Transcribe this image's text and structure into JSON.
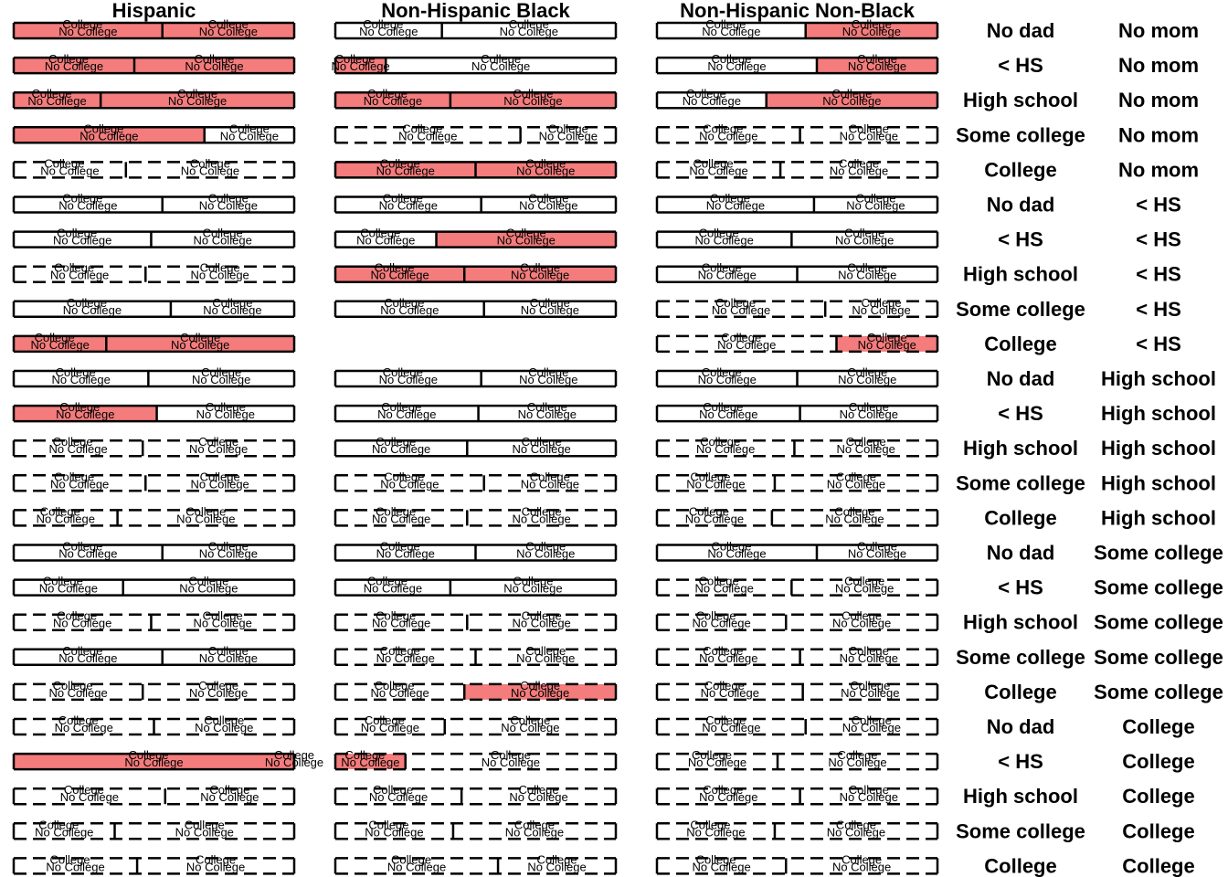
{
  "chart_data": {
    "type": "bar",
    "title": "",
    "columns": [
      "Hispanic",
      "Non-Hispanic Black",
      "Non-Hispanic Non-Black"
    ],
    "segment_labels": [
      "No College",
      "College"
    ],
    "row_labels": [
      [
        "No dad",
        "No mom"
      ],
      [
        "< HS",
        "No mom"
      ],
      [
        "High school",
        "No mom"
      ],
      [
        "Some college",
        "No mom"
      ],
      [
        "College",
        "No mom"
      ],
      [
        "No dad",
        "< HS"
      ],
      [
        "< HS",
        "< HS"
      ],
      [
        "High school",
        "< HS"
      ],
      [
        "Some college",
        "< HS"
      ],
      [
        "College",
        "< HS"
      ],
      [
        "No dad",
        "High school"
      ],
      [
        "< HS",
        "High school"
      ],
      [
        "High school",
        "High school"
      ],
      [
        "Some college",
        "High school"
      ],
      [
        "College",
        "High school"
      ],
      [
        "No dad",
        "Some college"
      ],
      [
        "< HS",
        "Some college"
      ],
      [
        "High school",
        "Some college"
      ],
      [
        "Some college",
        "Some college"
      ],
      [
        "College",
        "Some college"
      ],
      [
        "No dad",
        "College"
      ],
      [
        "< HS",
        "College"
      ],
      [
        "High school",
        "College"
      ],
      [
        "Some college",
        "College"
      ],
      [
        "College",
        "College"
      ]
    ],
    "no_college_share": [
      [
        0.53,
        0.38,
        0.53
      ],
      [
        0.43,
        0.18,
        0.57
      ],
      [
        0.31,
        0.41,
        0.39
      ],
      [
        0.68,
        0.66,
        0.51
      ],
      [
        0.4,
        0.5,
        0.44
      ],
      [
        0.53,
        0.52,
        0.56
      ],
      [
        0.49,
        0.36,
        0.48
      ],
      [
        0.47,
        0.46,
        0.5
      ],
      [
        0.56,
        0.53,
        0.6
      ],
      [
        0.33,
        null,
        0.64
      ],
      [
        0.48,
        0.52,
        0.5
      ],
      [
        0.51,
        0.51,
        0.51
      ],
      [
        0.46,
        0.47,
        0.49
      ],
      [
        0.47,
        0.53,
        0.42
      ],
      [
        0.37,
        0.47,
        0.41
      ],
      [
        0.53,
        0.5,
        0.57
      ],
      [
        0.39,
        0.41,
        0.48
      ],
      [
        0.49,
        0.47,
        0.46
      ],
      [
        0.53,
        0.5,
        0.51
      ],
      [
        0.46,
        0.46,
        0.52
      ],
      [
        0.5,
        0.39,
        0.53
      ],
      [
        1.0,
        0.25,
        0.43
      ],
      [
        0.54,
        0.45,
        0.51
      ],
      [
        0.36,
        0.42,
        0.42
      ],
      [
        0.44,
        0.58,
        0.46
      ]
    ],
    "highlighted": [
      [
        true,
        false,
        true
      ],
      [
        true,
        true,
        true
      ],
      [
        true,
        true,
        true
      ],
      [
        true,
        false,
        false
      ],
      [
        false,
        true,
        false
      ],
      [
        false,
        false,
        false
      ],
      [
        false,
        true,
        false
      ],
      [
        false,
        true,
        false
      ],
      [
        false,
        false,
        false
      ],
      [
        true,
        false,
        true
      ],
      [
        false,
        false,
        false
      ],
      [
        true,
        false,
        false
      ],
      [
        false,
        false,
        false
      ],
      [
        false,
        false,
        false
      ],
      [
        false,
        false,
        false
      ],
      [
        false,
        false,
        false
      ],
      [
        false,
        false,
        false
      ],
      [
        false,
        false,
        false
      ],
      [
        false,
        false,
        false
      ],
      [
        false,
        true,
        false
      ],
      [
        false,
        false,
        false
      ],
      [
        true,
        true,
        false
      ],
      [
        false,
        false,
        false
      ],
      [
        false,
        false,
        false
      ],
      [
        false,
        false,
        false
      ]
    ],
    "highlight_segment": [
      [
        "both",
        null,
        "college"
      ],
      [
        "both",
        "no_college",
        "college"
      ],
      [
        "both",
        "both",
        "college"
      ],
      [
        "no_college",
        null,
        null
      ],
      [
        null,
        "both",
        null
      ],
      [
        null,
        null,
        null
      ],
      [
        null,
        "college",
        null
      ],
      [
        null,
        "both",
        null
      ],
      [
        null,
        null,
        null
      ],
      [
        "both",
        null,
        "college"
      ],
      [
        null,
        null,
        null
      ],
      [
        "no_college",
        null,
        null
      ],
      [
        null,
        null,
        null
      ],
      [
        null,
        null,
        null
      ],
      [
        null,
        null,
        null
      ],
      [
        null,
        null,
        null
      ],
      [
        null,
        null,
        null
      ],
      [
        null,
        null,
        null
      ],
      [
        null,
        null,
        null
      ],
      [
        null,
        "college",
        null
      ],
      [
        null,
        null,
        null
      ],
      [
        "both",
        "no_college",
        null
      ],
      [
        null,
        null,
        null
      ],
      [
        null,
        null,
        null
      ],
      [
        null,
        null,
        null
      ]
    ],
    "dashed": [
      [
        false,
        false,
        false
      ],
      [
        false,
        false,
        false
      ],
      [
        false,
        false,
        false
      ],
      [
        false,
        true,
        true
      ],
      [
        true,
        false,
        true
      ],
      [
        false,
        false,
        false
      ],
      [
        false,
        false,
        false
      ],
      [
        true,
        false,
        false
      ],
      [
        false,
        false,
        true
      ],
      [
        false,
        null,
        true
      ],
      [
        false,
        false,
        false
      ],
      [
        false,
        false,
        false
      ],
      [
        true,
        false,
        true
      ],
      [
        true,
        true,
        true
      ],
      [
        true,
        true,
        true
      ],
      [
        false,
        false,
        false
      ],
      [
        false,
        false,
        true
      ],
      [
        true,
        true,
        true
      ],
      [
        false,
        true,
        true
      ],
      [
        true,
        true,
        true
      ],
      [
        true,
        true,
        true
      ],
      [
        false,
        true,
        true
      ],
      [
        true,
        true,
        true
      ],
      [
        true,
        true,
        true
      ],
      [
        true,
        true,
        true
      ]
    ],
    "colors": {
      "highlight": "#f47c7c",
      "border": "#000000",
      "highlight_border": "#8b1a1a",
      "background": "#ffffff"
    }
  }
}
